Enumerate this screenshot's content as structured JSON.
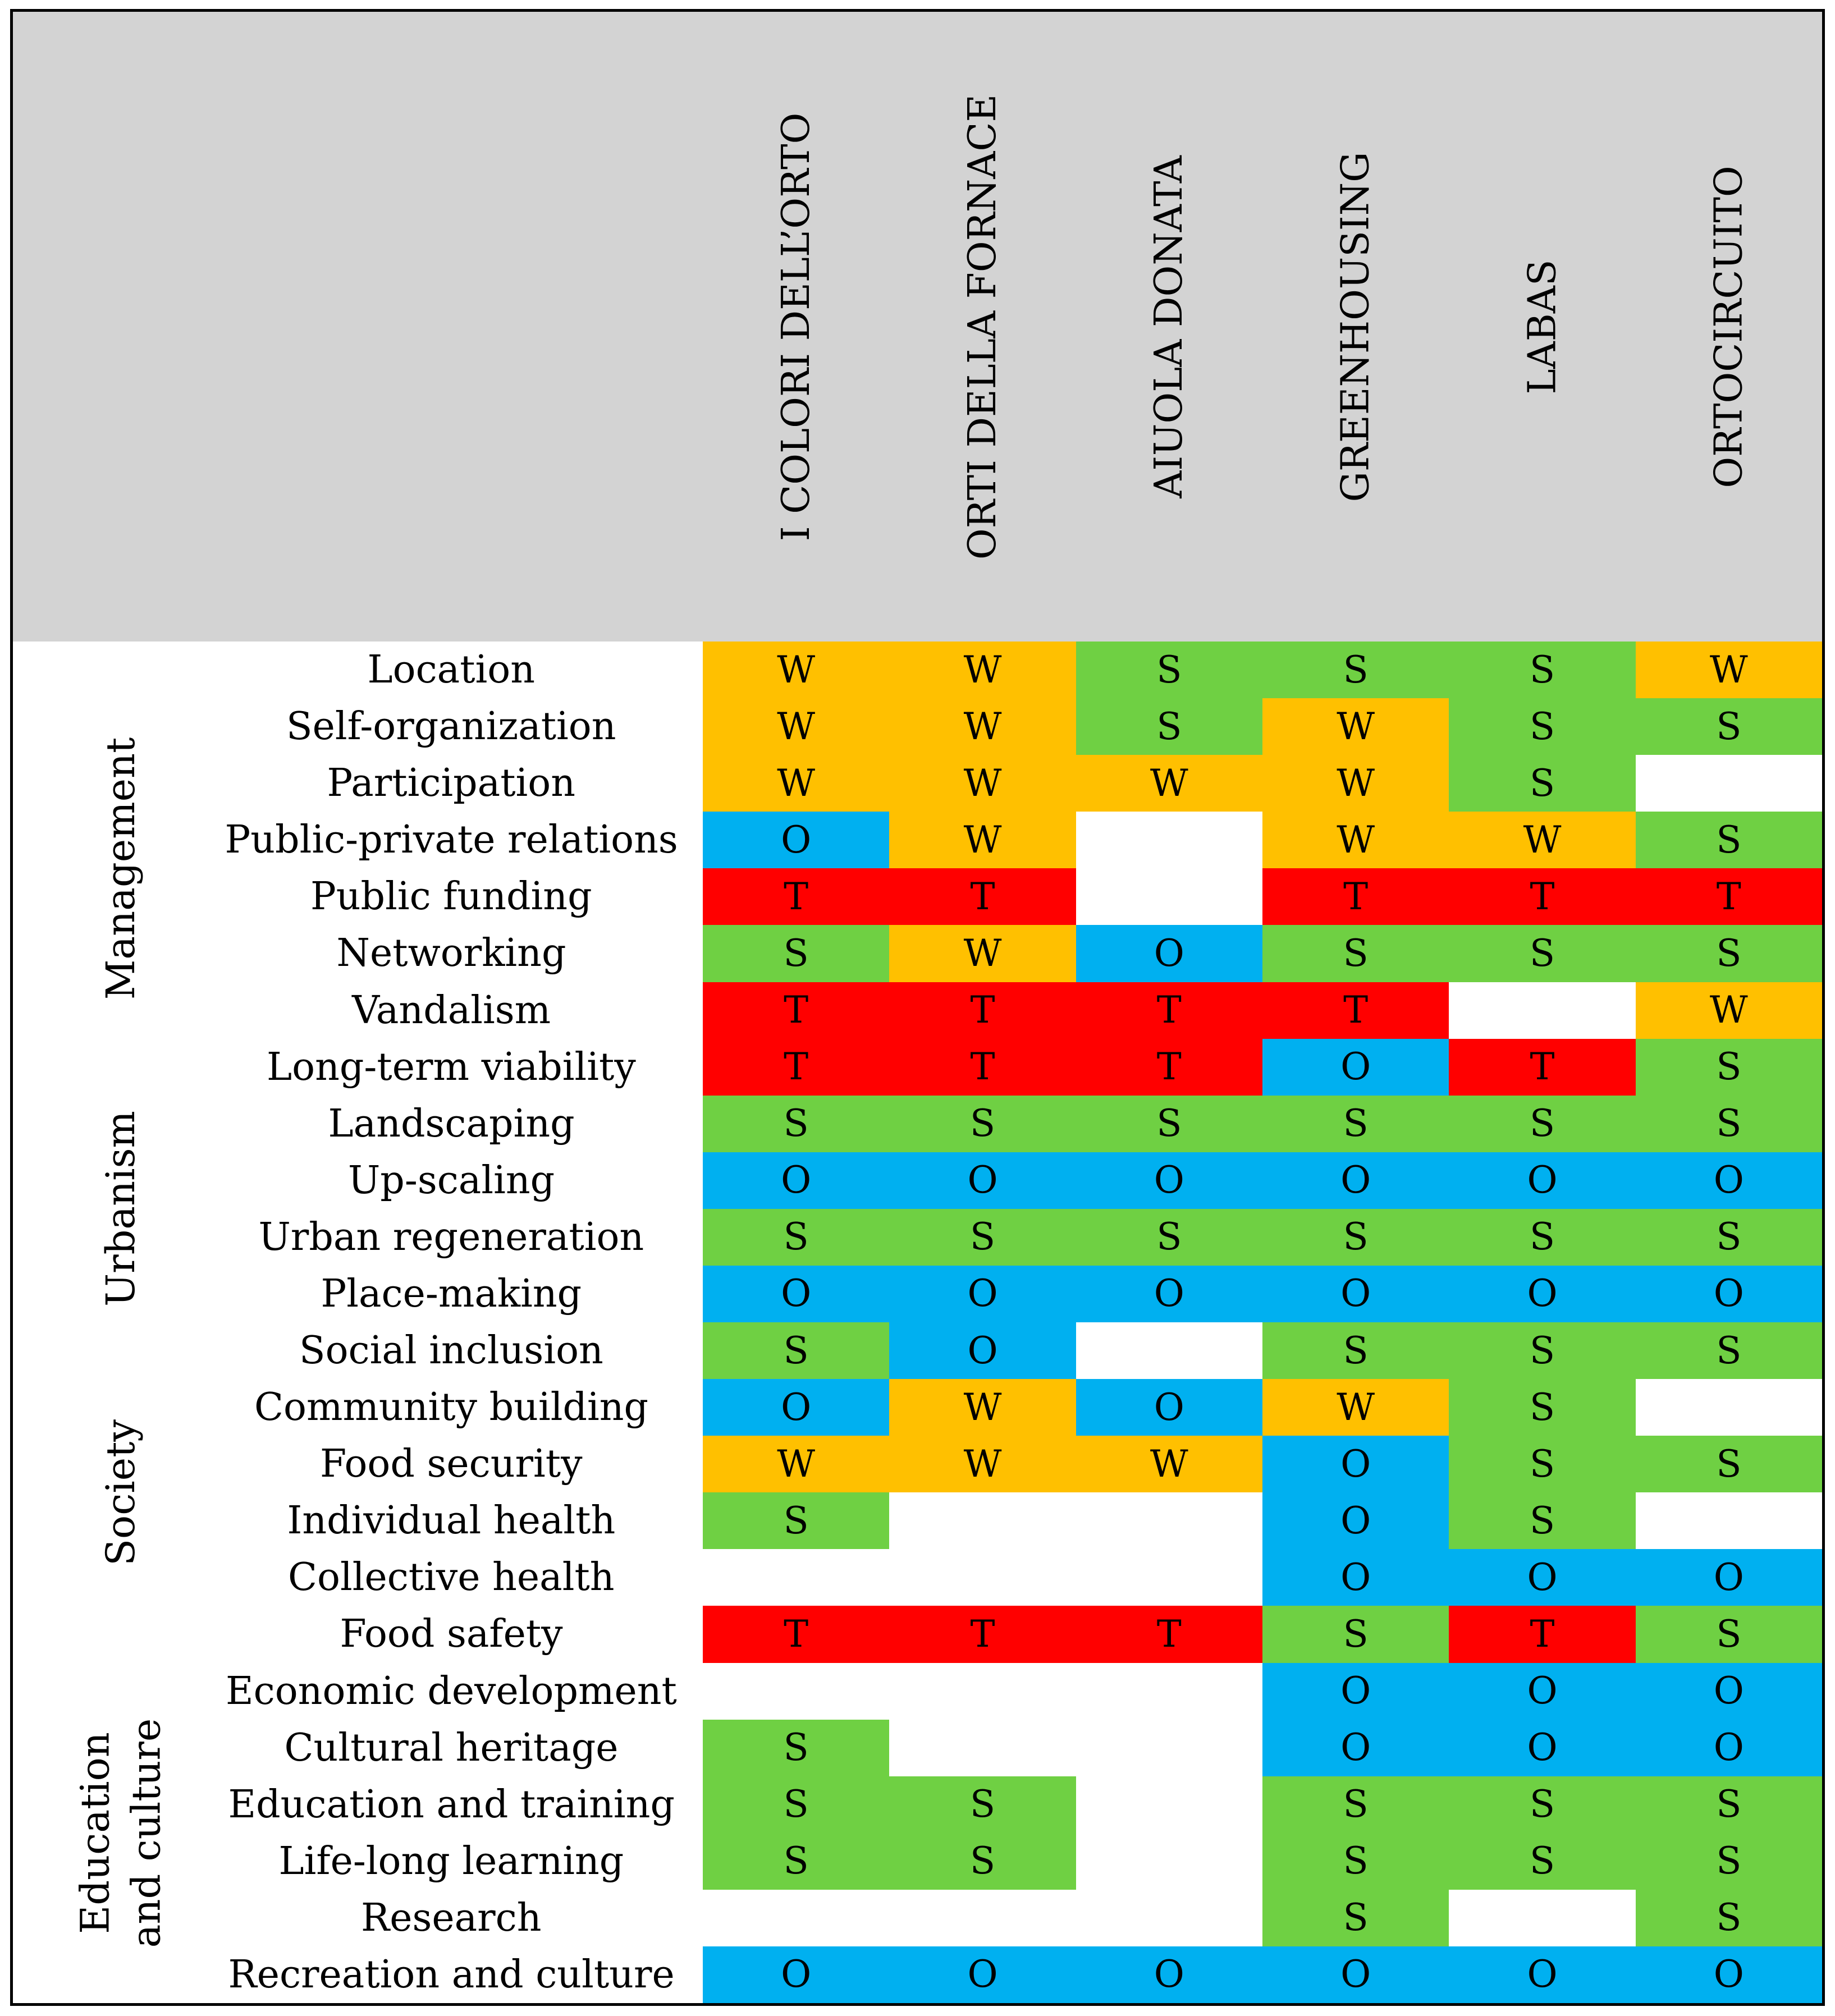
{
  "chart_data": {
    "type": "table",
    "title": "",
    "columns": [
      "I COLORI DELL’ORTO",
      "ORTI DELLA FORNACE",
      "AIUOLA DONATA",
      "GREENHOUSING",
      "LABAS",
      "ORTOCIRCUITO"
    ],
    "groups": [
      {
        "name": "Management",
        "lines": [
          "Management"
        ],
        "rows": [
          0,
          7
        ]
      },
      {
        "name": "Urbanism",
        "lines": [
          "Urbanism"
        ],
        "rows": [
          8,
          11
        ]
      },
      {
        "name": "Society",
        "lines": [
          "Society"
        ],
        "rows": [
          12,
          17
        ]
      },
      {
        "name": "Education and culture",
        "lines": [
          "Education",
          "and culture"
        ],
        "rows": [
          18,
          23
        ]
      }
    ],
    "rows": [
      {
        "label": "Location",
        "values": [
          "W",
          "W",
          "S",
          "S",
          "S",
          "W"
        ]
      },
      {
        "label": "Self-organization",
        "values": [
          "W",
          "W",
          "S",
          "W",
          "S",
          "S"
        ]
      },
      {
        "label": "Participation",
        "values": [
          "W",
          "W",
          "W",
          "W",
          "S",
          ""
        ]
      },
      {
        "label": "Public-private relations",
        "values": [
          "O",
          "W",
          "",
          "W",
          "W",
          "S"
        ]
      },
      {
        "label": "Public funding",
        "values": [
          "T",
          "T",
          "",
          "T",
          "T",
          "T"
        ]
      },
      {
        "label": "Networking",
        "values": [
          "S",
          "W",
          "O",
          "S",
          "S",
          "S"
        ]
      },
      {
        "label": "Vandalism",
        "values": [
          "T",
          "T",
          "T",
          "T",
          "",
          "W"
        ]
      },
      {
        "label": "Long-term viability",
        "values": [
          "T",
          "T",
          "T",
          "O",
          "T",
          "S"
        ]
      },
      {
        "label": "Landscaping",
        "values": [
          "S",
          "S",
          "S",
          "S",
          "S",
          "S"
        ]
      },
      {
        "label": "Up-scaling",
        "values": [
          "O",
          "O",
          "O",
          "O",
          "O",
          "O"
        ]
      },
      {
        "label": "Urban regeneration",
        "values": [
          "S",
          "S",
          "S",
          "S",
          "S",
          "S"
        ]
      },
      {
        "label": "Place-making",
        "values": [
          "O",
          "O",
          "O",
          "O",
          "O",
          "O"
        ]
      },
      {
        "label": "Social inclusion",
        "values": [
          "S",
          "O",
          "",
          "S",
          "S",
          "S"
        ]
      },
      {
        "label": "Community building",
        "values": [
          "O",
          "W",
          "O",
          "W",
          "S",
          ""
        ]
      },
      {
        "label": "Food security",
        "values": [
          "W",
          "W",
          "W",
          "O",
          "S",
          "S"
        ]
      },
      {
        "label": "Individual health",
        "values": [
          "S",
          "",
          "",
          "O",
          "S",
          ""
        ]
      },
      {
        "label": "Collective health",
        "values": [
          "",
          "",
          "",
          "O",
          "O",
          "O"
        ]
      },
      {
        "label": "Food safety",
        "values": [
          "T",
          "T",
          "T",
          "S",
          "T",
          "S"
        ]
      },
      {
        "label": "Economic development",
        "values": [
          "",
          "",
          "",
          "O",
          "O",
          "O"
        ]
      },
      {
        "label": "Cultural heritage",
        "values": [
          "S",
          "",
          "",
          "O",
          "O",
          "O"
        ]
      },
      {
        "label": "Education and training",
        "values": [
          "S",
          "S",
          "",
          "S",
          "S",
          "S"
        ]
      },
      {
        "label": "Life-long learning",
        "values": [
          "S",
          "S",
          "",
          "S",
          "S",
          "S"
        ]
      },
      {
        "label": "Research",
        "values": [
          "",
          "",
          "",
          "S",
          "",
          "S"
        ]
      },
      {
        "label": "Recreation and culture",
        "values": [
          "O",
          "O",
          "O",
          "O",
          "O",
          "O"
        ]
      }
    ],
    "colors": {
      "S": "#6fd043",
      "W": "#ffc000",
      "O": "#00b0f0",
      "T": "#ff0000",
      "empty": "#ffffff",
      "header": "#d3d3d3"
    }
  }
}
